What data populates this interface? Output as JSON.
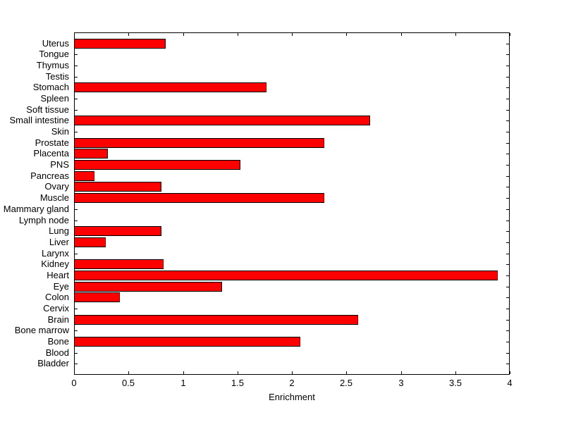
{
  "chart_data": {
    "type": "bar",
    "orientation": "horizontal",
    "title": "",
    "xlabel": "Enrichment",
    "ylabel": "",
    "xlim": [
      0,
      4
    ],
    "xticks": [
      0,
      0.5,
      1,
      1.5,
      2,
      2.5,
      3,
      3.5,
      4
    ],
    "xtick_labels": [
      "0",
      "0.5",
      "1",
      "1.5",
      "2",
      "2.5",
      "3",
      "3.5",
      "4"
    ],
    "categories": [
      "Uterus",
      "Tongue",
      "Thymus",
      "Testis",
      "Stomach",
      "Spleen",
      "Soft tissue",
      "Small intestine",
      "Skin",
      "Prostate",
      "Placenta",
      "PNS",
      "Pancreas",
      "Ovary",
      "Muscle",
      "Mammary gland",
      "Lymph node",
      "Lung",
      "Liver",
      "Larynx",
      "Kidney",
      "Heart",
      "Eye",
      "Colon",
      "Cervix",
      "Brain",
      "Bone marrow",
      "Bone",
      "Blood",
      "Bladder"
    ],
    "values": [
      0.84,
      0,
      0,
      0,
      1.77,
      0,
      0,
      2.72,
      0,
      2.3,
      0.31,
      1.53,
      0.19,
      0.8,
      2.3,
      0,
      0,
      0.8,
      0.29,
      0,
      0.82,
      3.89,
      1.36,
      0.42,
      0,
      2.61,
      0,
      2.08,
      0,
      0
    ],
    "bar_color": "#ff0000",
    "bar_edge_color": "#000000",
    "axis_color": "#000000",
    "background_color": "#ffffff",
    "grid": false,
    "legend": null
  }
}
